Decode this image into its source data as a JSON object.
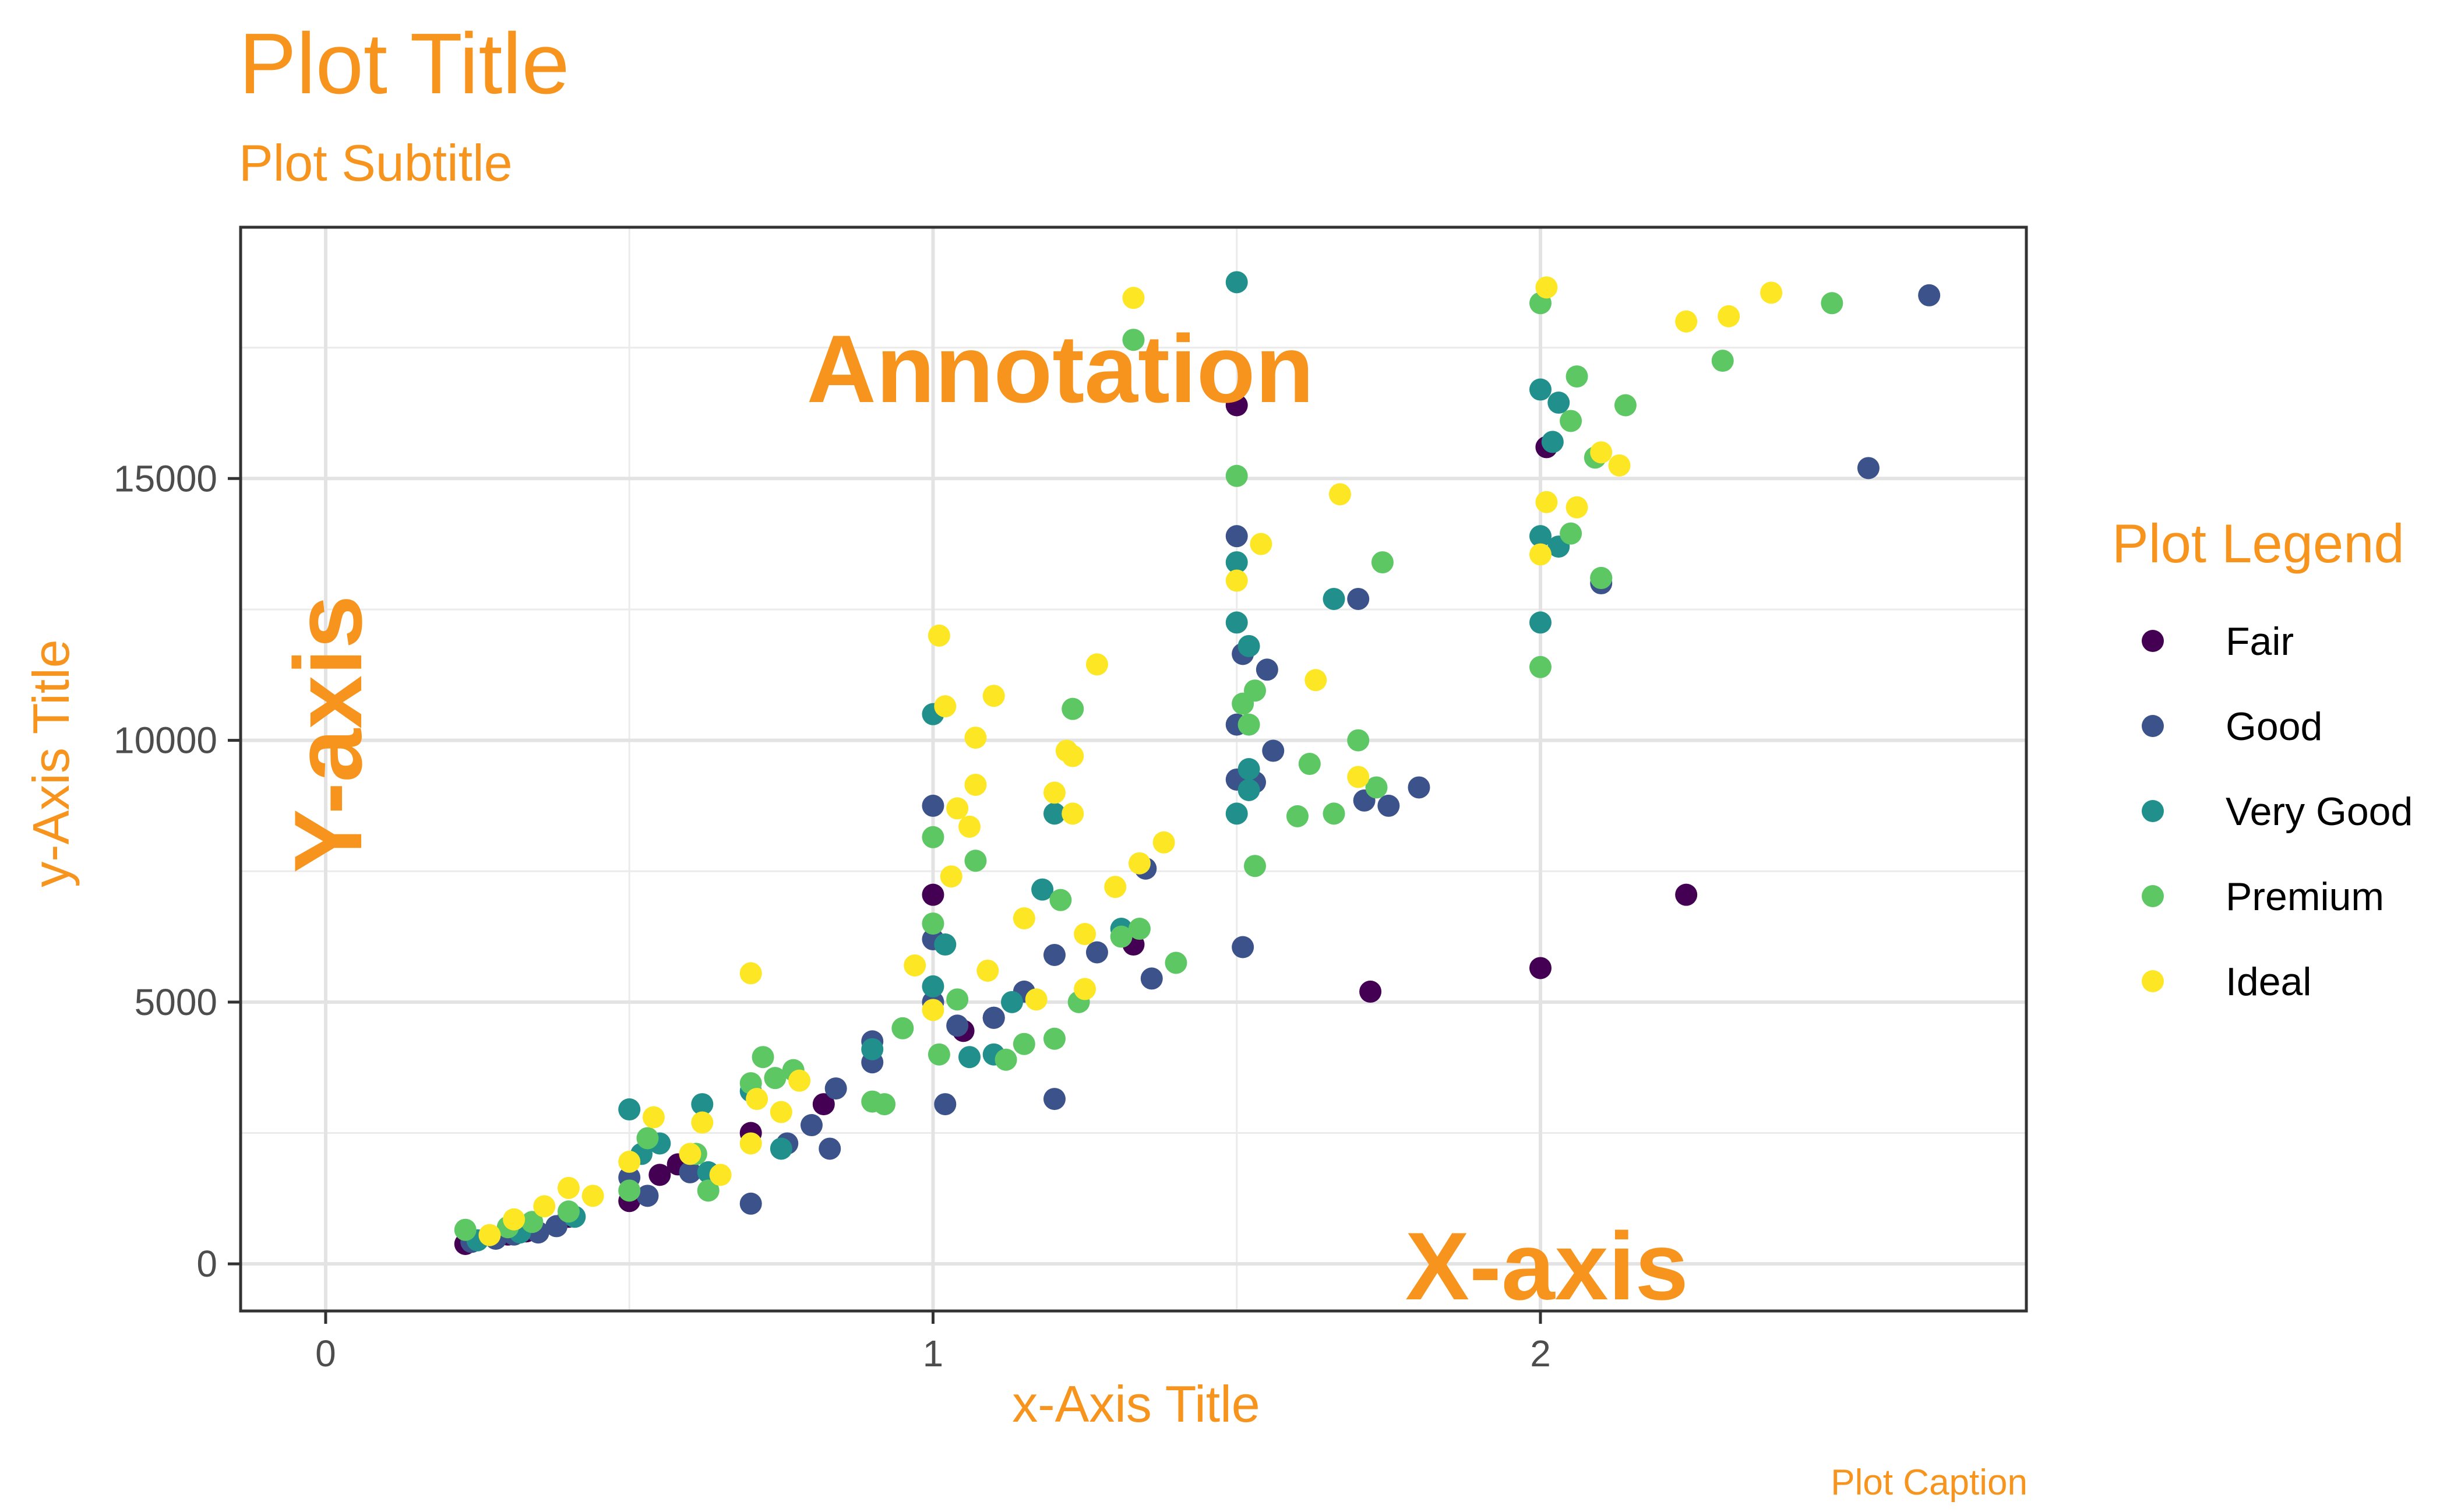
{
  "chart_data": {
    "type": "scatter",
    "title": "Plot Title",
    "subtitle": "Plot Subtitle",
    "caption": "Plot Caption",
    "xlabel": "x-Axis Title",
    "ylabel": "y-Axis Title",
    "annotations": [
      "Annotation",
      "Y-axis",
      "X-axis"
    ],
    "legend_title": "Plot Legend",
    "legend_position": "right",
    "grid": true,
    "xlim": [
      -0.14,
      2.8
    ],
    "ylim": [
      -900,
      19800
    ],
    "x_ticks": [
      0,
      1,
      2
    ],
    "x_tick_labels": [
      "0",
      "1",
      "2"
    ],
    "y_ticks": [
      0,
      5000,
      10000,
      15000
    ],
    "y_tick_labels": [
      "0",
      "5000",
      "10000",
      "15000"
    ],
    "text_color": "#F7941D",
    "series": [
      {
        "name": "Fair",
        "color": "#440154",
        "points": [
          [
            0.23,
            380
          ],
          [
            0.3,
            560
          ],
          [
            0.33,
            620
          ],
          [
            0.4,
            900
          ],
          [
            0.5,
            1200
          ],
          [
            0.55,
            1700
          ],
          [
            0.58,
            1900
          ],
          [
            0.7,
            2500
          ],
          [
            0.82,
            3050
          ],
          [
            1.0,
            7050
          ],
          [
            1.05,
            4450
          ],
          [
            1.1,
            4700
          ],
          [
            1.33,
            6100
          ],
          [
            1.5,
            16400
          ],
          [
            1.72,
            5200
          ],
          [
            2.0,
            5650
          ],
          [
            2.01,
            15600
          ],
          [
            2.24,
            7050
          ]
        ]
      },
      {
        "name": "Good",
        "color": "#3B528B",
        "points": [
          [
            0.24,
            420
          ],
          [
            0.28,
            480
          ],
          [
            0.31,
            560
          ],
          [
            0.35,
            600
          ],
          [
            0.38,
            720
          ],
          [
            0.5,
            1650
          ],
          [
            0.53,
            1300
          ],
          [
            0.6,
            1750
          ],
          [
            0.7,
            1150
          ],
          [
            0.76,
            2300
          ],
          [
            0.8,
            2650
          ],
          [
            0.83,
            2200
          ],
          [
            0.84,
            3350
          ],
          [
            0.9,
            3850
          ],
          [
            0.9,
            4250
          ],
          [
            1.0,
            8750
          ],
          [
            1.0,
            6200
          ],
          [
            1.0,
            5000
          ],
          [
            1.02,
            3050
          ],
          [
            1.04,
            4550
          ],
          [
            1.1,
            4700
          ],
          [
            1.15,
            5200
          ],
          [
            1.2,
            5900
          ],
          [
            1.2,
            3150
          ],
          [
            1.27,
            5950
          ],
          [
            1.35,
            7550
          ],
          [
            1.36,
            5450
          ],
          [
            1.5,
            13900
          ],
          [
            1.5,
            10300
          ],
          [
            1.5,
            9250
          ],
          [
            1.51,
            6050
          ],
          [
            1.51,
            11650
          ],
          [
            1.53,
            9200
          ],
          [
            1.55,
            11350
          ],
          [
            1.56,
            9800
          ],
          [
            1.7,
            12700
          ],
          [
            1.71,
            8850
          ],
          [
            1.75,
            8750
          ],
          [
            1.8,
            9100
          ],
          [
            2.1,
            13000
          ],
          [
            2.54,
            15200
          ],
          [
            2.64,
            18500
          ]
        ]
      },
      {
        "name": "Very Good",
        "color": "#21908C",
        "points": [
          [
            0.25,
            450
          ],
          [
            0.32,
            600
          ],
          [
            0.41,
            900
          ],
          [
            0.5,
            2950
          ],
          [
            0.52,
            2100
          ],
          [
            0.55,
            2300
          ],
          [
            0.62,
            3050
          ],
          [
            0.63,
            1750
          ],
          [
            0.7,
            3300
          ],
          [
            0.75,
            2200
          ],
          [
            0.9,
            4100
          ],
          [
            1.0,
            10500
          ],
          [
            1.0,
            5300
          ],
          [
            1.02,
            6100
          ],
          [
            1.06,
            3950
          ],
          [
            1.1,
            4000
          ],
          [
            1.13,
            5000
          ],
          [
            1.18,
            7150
          ],
          [
            1.2,
            8600
          ],
          [
            1.31,
            6400
          ],
          [
            1.5,
            18750
          ],
          [
            1.5,
            13400
          ],
          [
            1.5,
            12250
          ],
          [
            1.5,
            8600
          ],
          [
            1.52,
            11800
          ],
          [
            1.52,
            9450
          ],
          [
            1.52,
            9050
          ],
          [
            1.66,
            12700
          ],
          [
            2.0,
            16700
          ],
          [
            2.0,
            13900
          ],
          [
            2.0,
            12250
          ],
          [
            2.02,
            15700
          ],
          [
            2.03,
            16450
          ],
          [
            2.03,
            13700
          ],
          [
            2.1,
            13100
          ]
        ]
      },
      {
        "name": "Premium",
        "color": "#5DC863",
        "points": [
          [
            0.23,
            650
          ],
          [
            0.3,
            700
          ],
          [
            0.34,
            800
          ],
          [
            0.4,
            1000
          ],
          [
            0.5,
            1400
          ],
          [
            0.53,
            2400
          ],
          [
            0.61,
            2100
          ],
          [
            0.63,
            1400
          ],
          [
            0.7,
            3450
          ],
          [
            0.72,
            3950
          ],
          [
            0.74,
            3550
          ],
          [
            0.77,
            3700
          ],
          [
            0.9,
            3100
          ],
          [
            0.92,
            3050
          ],
          [
            0.95,
            4500
          ],
          [
            1.0,
            8150
          ],
          [
            1.0,
            6500
          ],
          [
            1.01,
            4000
          ],
          [
            1.04,
            5050
          ],
          [
            1.07,
            7700
          ],
          [
            1.12,
            3900
          ],
          [
            1.15,
            4200
          ],
          [
            1.2,
            4300
          ],
          [
            1.21,
            6950
          ],
          [
            1.23,
            10600
          ],
          [
            1.24,
            5000
          ],
          [
            1.31,
            6250
          ],
          [
            1.34,
            6400
          ],
          [
            1.4,
            5750
          ],
          [
            1.33,
            17650
          ],
          [
            1.5,
            15050
          ],
          [
            1.51,
            10700
          ],
          [
            1.52,
            10300
          ],
          [
            1.53,
            10950
          ],
          [
            1.53,
            7600
          ],
          [
            1.6,
            8550
          ],
          [
            1.62,
            9550
          ],
          [
            1.66,
            8600
          ],
          [
            1.7,
            10000
          ],
          [
            1.73,
            9100
          ],
          [
            1.74,
            13400
          ],
          [
            2.0,
            18350
          ],
          [
            2.0,
            11400
          ],
          [
            2.05,
            16100
          ],
          [
            2.06,
            16950
          ],
          [
            2.05,
            13950
          ],
          [
            2.09,
            15400
          ],
          [
            2.1,
            13100
          ],
          [
            2.14,
            16400
          ],
          [
            2.3,
            17250
          ],
          [
            2.48,
            18350
          ]
        ]
      },
      {
        "name": "Ideal",
        "color": "#FDE725",
        "points": [
          [
            0.27,
            550
          ],
          [
            0.31,
            850
          ],
          [
            0.36,
            1100
          ],
          [
            0.4,
            1450
          ],
          [
            0.44,
            1300
          ],
          [
            0.5,
            1950
          ],
          [
            0.54,
            2800
          ],
          [
            0.6,
            2100
          ],
          [
            0.62,
            2700
          ],
          [
            0.65,
            1700
          ],
          [
            0.7,
            5550
          ],
          [
            0.7,
            2300
          ],
          [
            0.71,
            3150
          ],
          [
            0.75,
            2900
          ],
          [
            0.78,
            3500
          ],
          [
            0.97,
            5700
          ],
          [
            1.0,
            4850
          ],
          [
            1.01,
            12000
          ],
          [
            1.02,
            10650
          ],
          [
            1.03,
            7400
          ],
          [
            1.04,
            8700
          ],
          [
            1.06,
            8350
          ],
          [
            1.07,
            9150
          ],
          [
            1.07,
            10050
          ],
          [
            1.09,
            5600
          ],
          [
            1.1,
            10850
          ],
          [
            1.15,
            6600
          ],
          [
            1.17,
            5050
          ],
          [
            1.2,
            9000
          ],
          [
            1.22,
            9800
          ],
          [
            1.23,
            9700
          ],
          [
            1.23,
            8600
          ],
          [
            1.25,
            5250
          ],
          [
            1.25,
            6300
          ],
          [
            1.27,
            11450
          ],
          [
            1.3,
            7200
          ],
          [
            1.33,
            18450
          ],
          [
            1.34,
            7650
          ],
          [
            1.38,
            8050
          ],
          [
            1.5,
            13050
          ],
          [
            1.54,
            13750
          ],
          [
            1.63,
            11150
          ],
          [
            1.67,
            14700
          ],
          [
            1.7,
            9300
          ],
          [
            2.0,
            13550
          ],
          [
            2.01,
            18650
          ],
          [
            2.01,
            14550
          ],
          [
            2.06,
            14450
          ],
          [
            2.1,
            15500
          ],
          [
            2.13,
            15250
          ],
          [
            2.24,
            18000
          ],
          [
            2.31,
            18100
          ],
          [
            2.38,
            18550
          ]
        ]
      }
    ]
  }
}
